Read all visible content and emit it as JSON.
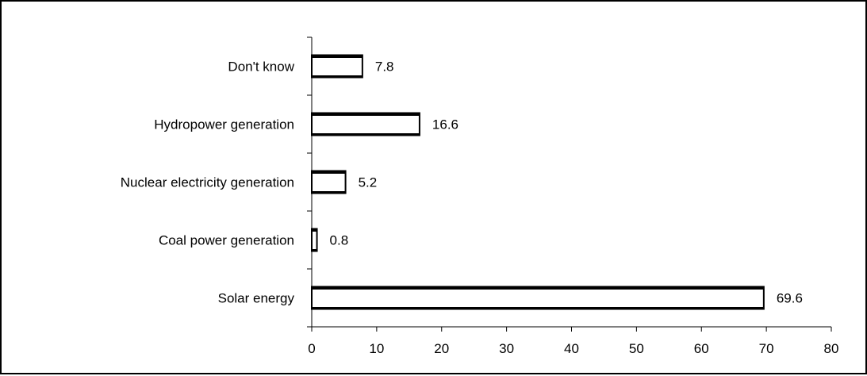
{
  "chart_data": {
    "type": "bar",
    "orientation": "horizontal",
    "categories": [
      "Solar energy",
      "Coal power generation",
      "Nuclear electricity generation",
      "Hydropower generation",
      "Don't know"
    ],
    "values": [
      69.6,
      0.8,
      5.2,
      16.6,
      7.8
    ],
    "value_labels": [
      "69.6",
      "0.8",
      "5.2",
      "16.6",
      "7.8"
    ],
    "xlim": [
      0,
      80
    ],
    "x_ticks": [
      0,
      10,
      20,
      30,
      40,
      50,
      60,
      70,
      80
    ],
    "grid": false,
    "legend": "none",
    "colors": {
      "bar_fill": "#ffffff",
      "bar_stroke": "#000000",
      "axis": "#000000"
    }
  }
}
